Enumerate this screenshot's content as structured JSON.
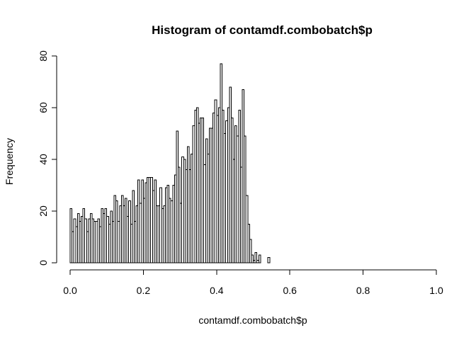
{
  "chart_data": {
    "type": "bar",
    "title": "Histogram of contamdf.combobatch$p",
    "xlabel": "contamdf.combobatch$p",
    "ylabel": "Frequency",
    "bin_width": 0.005,
    "x_range": [
      0,
      1
    ],
    "xlim": [
      0,
      1
    ],
    "ylim": [
      0,
      80
    ],
    "xticks": [
      "0.0",
      "0.2",
      "0.4",
      "0.6",
      "0.8",
      "1.0"
    ],
    "yticks": [
      "0",
      "20",
      "40",
      "60",
      "80"
    ],
    "values": [
      21,
      12,
      17,
      14,
      19,
      16,
      18,
      21,
      17,
      12,
      17,
      19,
      17,
      16,
      16,
      17,
      14,
      21,
      19,
      21,
      18,
      15,
      20,
      16,
      26,
      24,
      16,
      22,
      26,
      22,
      25,
      18,
      24,
      15,
      28,
      16,
      22,
      32,
      23,
      32,
      25,
      31,
      33,
      33,
      33,
      28,
      32,
      22,
      22,
      29,
      21,
      22,
      29,
      30,
      25,
      24,
      30,
      34,
      51,
      37,
      23,
      41,
      40,
      36,
      45,
      36,
      42,
      53,
      59,
      60,
      54,
      56,
      56,
      38,
      48,
      42,
      52,
      52,
      58,
      63,
      57,
      60,
      77,
      59,
      50,
      55,
      60,
      68,
      56,
      40,
      53,
      49,
      59,
      37,
      67,
      49,
      26,
      15,
      9,
      3,
      1,
      4,
      1,
      3,
      0,
      0,
      0,
      0,
      2
    ]
  }
}
